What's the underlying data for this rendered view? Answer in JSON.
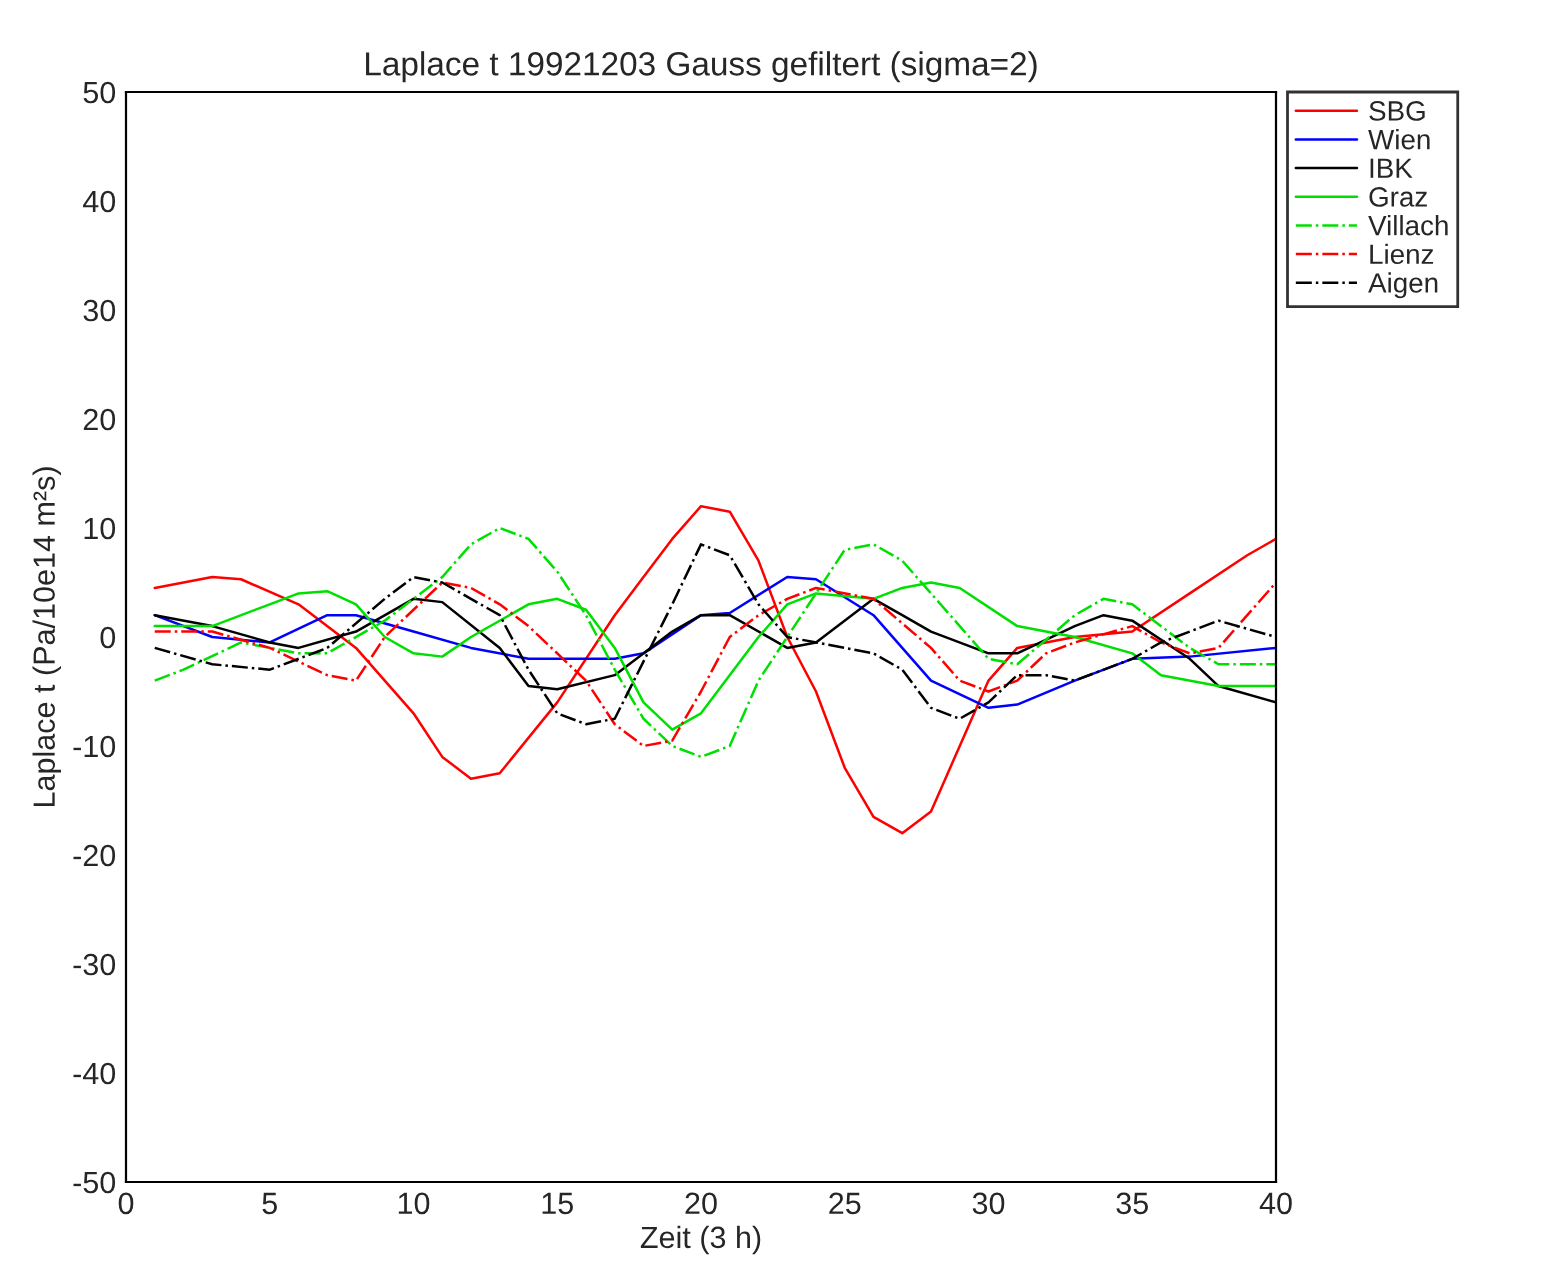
{
  "chart_data": {
    "type": "line",
    "title": "Laplace t 19921203 Gauss gefiltert (sigma=2)",
    "xlabel": "Zeit (3 h)",
    "ylabel": "Laplace t (Pa/10e14 m²s)",
    "xlim": [
      0,
      40
    ],
    "ylim": [
      -50,
      50
    ],
    "xticks": [
      0,
      5,
      10,
      15,
      20,
      25,
      30,
      35,
      40
    ],
    "yticks": [
      -50,
      -40,
      -30,
      -20,
      -10,
      0,
      10,
      20,
      30,
      40,
      50
    ],
    "grid": false,
    "legend": "top right",
    "series": [
      {
        "name": "SBG",
        "color": "#ff0000",
        "line_style": "solid",
        "x": [
          1,
          3,
          4,
          6,
          8,
          10,
          11,
          12,
          13,
          15,
          17,
          18,
          19,
          20,
          21,
          22,
          23,
          24,
          25,
          26,
          27,
          28,
          29,
          30,
          31,
          33,
          35,
          37,
          39,
          40
        ],
        "values": [
          4.5,
          5.5,
          5.3,
          3,
          -1,
          -7,
          -11,
          -13,
          -12.5,
          -6,
          2,
          5.5,
          9,
          12,
          11.5,
          7,
          0,
          -5,
          -12,
          -16.5,
          -18,
          -16,
          -10,
          -4,
          -1,
          0,
          0.5,
          4,
          7.5,
          9
        ]
      },
      {
        "name": "Wien",
        "color": "#0000ff",
        "line_style": "solid",
        "x": [
          1,
          3,
          5,
          7,
          8,
          10,
          12,
          14,
          17,
          18,
          20,
          21,
          23,
          24,
          26,
          28,
          30,
          31,
          33,
          35,
          37,
          40
        ],
        "values": [
          2,
          0,
          -0.5,
          2,
          2,
          0.5,
          -1,
          -2,
          -2,
          -1.5,
          2,
          2.2,
          5.5,
          5.3,
          2,
          -4,
          -6.5,
          -6.2,
          -4,
          -2,
          -1.8,
          -1
        ]
      },
      {
        "name": "IBK",
        "color": "#000000",
        "line_style": "solid",
        "x": [
          1,
          3,
          5,
          6,
          8,
          10,
          11,
          13,
          14,
          15,
          17,
          19,
          20,
          21,
          23,
          24,
          26,
          27,
          28,
          30,
          31,
          33,
          34,
          35,
          37,
          38,
          40
        ],
        "values": [
          2,
          1,
          -0.5,
          -1,
          0.5,
          3.5,
          3.2,
          -1,
          -4.5,
          -4.8,
          -3.5,
          0.5,
          2,
          2,
          -1,
          -0.5,
          3.5,
          2,
          0.5,
          -1.5,
          -1.5,
          1,
          2,
          1.5,
          -2,
          -4.5,
          -6
        ]
      },
      {
        "name": "Graz",
        "color": "#00e000",
        "line_style": "solid",
        "x": [
          1,
          3,
          5,
          6,
          7,
          8,
          9,
          10,
          11,
          12,
          14,
          15,
          16,
          17,
          18,
          19,
          20,
          22,
          23,
          24,
          26,
          27,
          28,
          29,
          31,
          33,
          35,
          36,
          38,
          40
        ],
        "values": [
          1,
          1,
          3,
          4,
          4.2,
          3,
          0,
          -1.5,
          -1.8,
          0,
          3,
          3.5,
          2.5,
          -1,
          -6,
          -8.5,
          -7,
          0,
          3,
          4,
          3.5,
          4.5,
          5,
          4.5,
          1,
          0,
          -1.5,
          -3.5,
          -4.5,
          -4.5
        ]
      },
      {
        "name": "Villach",
        "color": "#00e000",
        "line_style": "dashdot",
        "x": [
          1,
          2,
          4,
          6,
          7,
          9,
          11,
          12,
          13,
          14,
          15,
          16,
          17,
          18,
          19,
          20,
          21,
          22,
          24,
          25,
          26,
          27,
          29,
          30,
          31,
          33,
          34,
          35,
          37,
          38,
          40
        ],
        "values": [
          -4,
          -3,
          -0.5,
          -1.5,
          -1.5,
          1.5,
          5.5,
          8.5,
          10,
          9,
          6,
          2,
          -3,
          -7.5,
          -10,
          -11,
          -10,
          -4,
          4,
          8,
          8.5,
          7,
          1,
          -2,
          -2.5,
          2,
          3.5,
          3,
          -1,
          -2.5,
          -2.5
        ]
      },
      {
        "name": "Lienz",
        "color": "#ff0000",
        "line_style": "dashdot",
        "x": [
          1,
          3,
          5,
          7,
          8,
          9,
          11,
          12,
          13,
          14,
          16,
          17,
          18,
          19,
          20,
          21,
          22,
          23,
          24,
          26,
          28,
          29,
          30,
          31,
          32,
          33,
          35,
          36,
          37,
          38,
          40
        ],
        "values": [
          0.5,
          0.5,
          -1,
          -3.5,
          -4,
          0,
          5,
          4.5,
          3,
          1,
          -4,
          -8,
          -10,
          -9.5,
          -5,
          0,
          2,
          3.5,
          4.5,
          3.5,
          -1,
          -4,
          -5,
          -4,
          -1.5,
          -0.5,
          1,
          -0.5,
          -1.5,
          -1,
          5
        ]
      },
      {
        "name": "Aigen",
        "color": "#000000",
        "line_style": "dashdot",
        "x": [
          1,
          3,
          5,
          7,
          9,
          10,
          11,
          13,
          14,
          15,
          16,
          17,
          19,
          20,
          21,
          22,
          23,
          25,
          26,
          27,
          28,
          29,
          30,
          31,
          32,
          33,
          35,
          36,
          38,
          40
        ],
        "values": [
          -1,
          -2.5,
          -3,
          -1,
          3.5,
          5.5,
          5,
          2,
          -3,
          -7,
          -8,
          -7.5,
          3,
          8.5,
          7.5,
          3,
          0,
          -1,
          -1.5,
          -3,
          -6.5,
          -7.5,
          -6,
          -3.5,
          -3.5,
          -4,
          -2,
          -0.5,
          1.5,
          0
        ]
      }
    ]
  }
}
